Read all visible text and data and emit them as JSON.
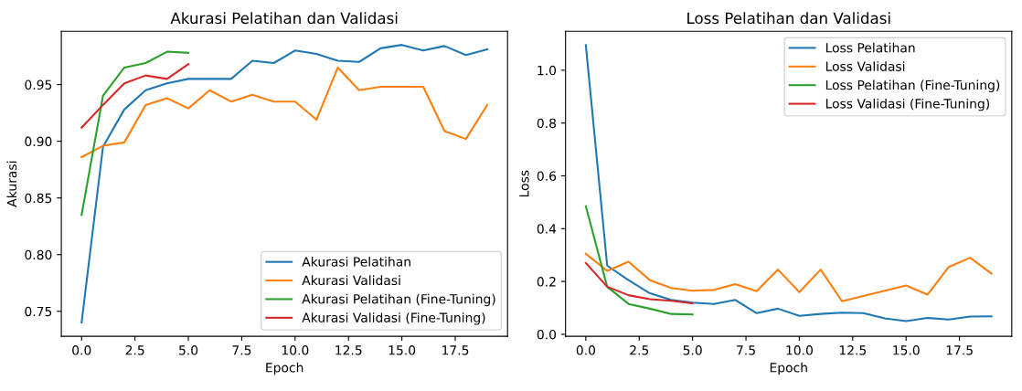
{
  "chart_data": [
    {
      "type": "line",
      "title": "Akurasi Pelatihan dan Validasi",
      "xlabel": "Epoch",
      "ylabel": "Akurasi",
      "legend": "lower right",
      "grid": false,
      "x": [
        0,
        1,
        2,
        3,
        4,
        5,
        6,
        7,
        8,
        9,
        10,
        11,
        12,
        13,
        14,
        15,
        16,
        17,
        18,
        19
      ],
      "xlim": [
        -0.95,
        19.95
      ],
      "ylim": [
        0.728,
        0.997
      ],
      "xticks": [
        {
          "value": 0,
          "label": "0.0"
        },
        {
          "value": 2.5,
          "label": "2.5"
        },
        {
          "value": 5,
          "label": "5.0"
        },
        {
          "value": 7.5,
          "label": "7.5"
        },
        {
          "value": 10,
          "label": "10.0"
        },
        {
          "value": 12.5,
          "label": "12.5"
        },
        {
          "value": 15,
          "label": "15.0"
        },
        {
          "value": 17.5,
          "label": "17.5"
        }
      ],
      "yticks": [
        {
          "value": 0.75,
          "label": "0.75"
        },
        {
          "value": 0.8,
          "label": "0.80"
        },
        {
          "value": 0.85,
          "label": "0.85"
        },
        {
          "value": 0.9,
          "label": "0.90"
        },
        {
          "value": 0.95,
          "label": "0.95"
        }
      ],
      "series": [
        {
          "name": "Akurasi Pelatihan",
          "color": "#1f77b4",
          "values": [
            0.74,
            0.895,
            0.928,
            0.945,
            0.951,
            0.955,
            0.955,
            0.955,
            0.971,
            0.969,
            0.98,
            0.977,
            0.971,
            0.97,
            0.982,
            0.985,
            0.98,
            0.984,
            0.976,
            0.981
          ]
        },
        {
          "name": "Akurasi Validasi",
          "color": "#ff7f0e",
          "values": [
            0.886,
            0.896,
            0.899,
            0.932,
            0.938,
            0.929,
            0.945,
            0.935,
            0.941,
            0.935,
            0.935,
            0.919,
            0.965,
            0.945,
            0.948,
            0.948,
            0.948,
            0.909,
            0.902,
            0.932
          ]
        },
        {
          "name": "Akurasi Pelatihan (Fine-Tuning)",
          "color": "#2ca02c",
          "x": [
            0,
            1,
            2,
            3,
            4,
            5
          ],
          "values": [
            0.835,
            0.94,
            0.965,
            0.969,
            0.979,
            0.978
          ]
        },
        {
          "name": "Akurasi Validasi (Fine-Tuning)",
          "color": "#d62728",
          "x": [
            0,
            1,
            2,
            3,
            4,
            5
          ],
          "values": [
            0.912,
            0.932,
            0.951,
            0.958,
            0.955,
            0.968
          ]
        }
      ]
    },
    {
      "type": "line",
      "title": "Loss Pelatihan dan Validasi",
      "xlabel": "Epoch",
      "ylabel": "Loss",
      "legend": "upper right",
      "grid": false,
      "x": [
        0,
        1,
        2,
        3,
        4,
        5,
        6,
        7,
        8,
        9,
        10,
        11,
        12,
        13,
        14,
        15,
        16,
        17,
        18,
        19
      ],
      "xlim": [
        -0.95,
        19.95
      ],
      "ylim": [
        -0.0075,
        1.1475
      ],
      "xticks": [
        {
          "value": 0,
          "label": "0.0"
        },
        {
          "value": 2.5,
          "label": "2.5"
        },
        {
          "value": 5,
          "label": "5.0"
        },
        {
          "value": 7.5,
          "label": "7.5"
        },
        {
          "value": 10,
          "label": "10.0"
        },
        {
          "value": 12.5,
          "label": "12.5"
        },
        {
          "value": 15,
          "label": "15.0"
        },
        {
          "value": 17.5,
          "label": "17.5"
        }
      ],
      "yticks": [
        {
          "value": 0,
          "label": "0.0"
        },
        {
          "value": 0.2,
          "label": "0.2"
        },
        {
          "value": 0.4,
          "label": "0.4"
        },
        {
          "value": 0.6,
          "label": "0.6"
        },
        {
          "value": 0.8,
          "label": "0.8"
        },
        {
          "value": 1.0,
          "label": "1.0"
        }
      ],
      "series": [
        {
          "name": "Loss Pelatihan",
          "color": "#1f77b4",
          "values": [
            1.095,
            0.26,
            0.205,
            0.155,
            0.13,
            0.12,
            0.115,
            0.13,
            0.08,
            0.097,
            0.07,
            0.077,
            0.082,
            0.08,
            0.06,
            0.05,
            0.062,
            0.056,
            0.067,
            0.068
          ]
        },
        {
          "name": "Loss Validasi",
          "color": "#ff7f0e",
          "values": [
            0.305,
            0.24,
            0.275,
            0.205,
            0.175,
            0.165,
            0.168,
            0.19,
            0.163,
            0.245,
            0.16,
            0.245,
            0.125,
            0.145,
            0.165,
            0.185,
            0.15,
            0.255,
            0.29,
            0.23
          ]
        },
        {
          "name": "Loss Pelatihan (Fine-Tuning)",
          "color": "#2ca02c",
          "x": [
            0,
            1,
            2,
            3,
            4,
            5
          ],
          "values": [
            0.485,
            0.18,
            0.115,
            0.097,
            0.077,
            0.075
          ]
        },
        {
          "name": "Loss Validasi (Fine-Tuning)",
          "color": "#d62728",
          "x": [
            0,
            1,
            2,
            3,
            4,
            5
          ],
          "values": [
            0.27,
            0.18,
            0.148,
            0.133,
            0.127,
            0.117
          ]
        }
      ]
    }
  ]
}
